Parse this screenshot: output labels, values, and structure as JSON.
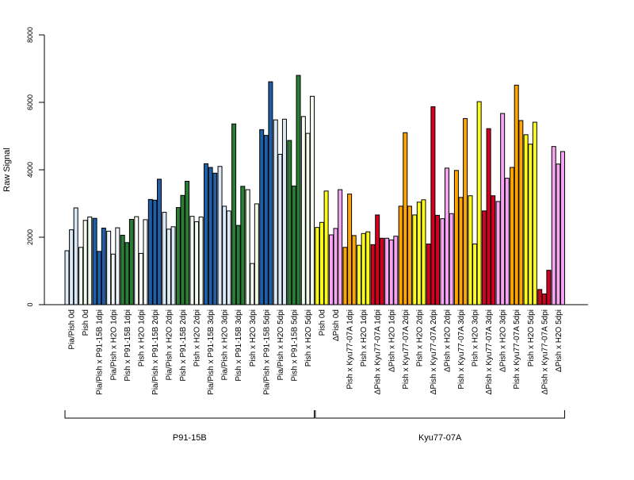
{
  "chart_data": {
    "type": "bar",
    "ylabel": "Raw Signal",
    "ylim": [
      0,
      8000
    ],
    "yticks": [
      0,
      2000,
      4000,
      6000,
      8000
    ],
    "grid": false,
    "legend": "none",
    "categories": [
      "Pia/Pish 0d",
      "Pish 0d",
      "Pia/Pish x P91-15B 1dpi",
      "Pia/Pish x H2O 1dpi",
      "Pish x P91-15B 1dpi",
      "Pish x H2O 1dpi",
      "Pia/Pish x P91-15B 2dpi",
      "Pia/Pish x H2O 2dpi",
      "Pish x P91-15B 2dpi",
      "Pish x H2O 2dpi",
      "Pia/Pish x P91-15B 3dpi",
      "Pia/Pish x H2O 3dpi",
      "Pish x P91-15B 3dpi",
      "Pish x H2O 3dpi",
      "Pia/Pish x P91-15B 5dpi",
      "Pia/Pish x H2O 5dpi",
      "Pish x P91-15B 5dpi",
      "Pish x H2O 5dpi",
      "Pish 0d",
      "ΔPish 0d",
      "Pish x Kyu77-07A 1dpi",
      "Pish x H2O 1dpi",
      "ΔPish x Kyu77-07A 1dpi",
      "ΔPish x H2O 1dpi",
      "Pish x Kyu77-07A 2dpi",
      "Pish x H2O 2dpi",
      "ΔPish x Kyu77-07A 2dpi",
      "ΔPish x H2O 2dpi",
      "Pish x Kyu77-07A 3dpi",
      "Pish x H2O 3dpi",
      "ΔPish x Kyu77-07A 3dpi",
      "ΔPish x H2O 3dpi",
      "Pish x Kyu77-07A 5dpi",
      "Pish x H2O 5dpi",
      "ΔPish x Kyu77-07A 5dpi",
      "ΔPish x H2O 5dpi"
    ],
    "replicates": [
      [
        1600,
        2220,
        2870
      ],
      [
        1700,
        2500,
        2600
      ],
      [
        2560,
        1580,
        2270
      ],
      [
        2180,
        1500,
        2280
      ],
      [
        2060,
        1840,
        2530
      ],
      [
        2610,
        1520,
        2520
      ],
      [
        3120,
        3100,
        3720
      ],
      [
        2740,
        2240,
        2310
      ],
      [
        2880,
        3240,
        3660
      ],
      [
        2620,
        2460,
        2600
      ],
      [
        4180,
        4070,
        3900
      ],
      [
        4100,
        2920,
        2780
      ],
      [
        5360,
        2350,
        3510
      ],
      [
        3410,
        1220,
        2990
      ],
      [
        5190,
        5020,
        6610
      ],
      [
        5480,
        4460,
        5500
      ],
      [
        4870,
        3520,
        6800
      ],
      [
        5580,
        5080,
        6180
      ],
      [
        2290,
        2440,
        3370
      ],
      [
        2070,
        2260,
        3410
      ],
      [
        1700,
        3280,
        2050
      ],
      [
        1760,
        2110,
        2160
      ],
      [
        1780,
        2660,
        1970
      ],
      [
        1970,
        1920,
        2030
      ],
      [
        2920,
        5100,
        2920
      ],
      [
        2660,
        3040,
        3110
      ],
      [
        1800,
        5870,
        2650
      ],
      [
        2550,
        4050,
        2700
      ],
      [
        3980,
        3180,
        5520
      ],
      [
        3230,
        1800,
        6020
      ],
      [
        2780,
        5220,
        3230
      ],
      [
        3060,
        5670,
        3750
      ],
      [
        4070,
        6510,
        5460
      ],
      [
        5040,
        4760,
        5410
      ],
      [
        450,
        320,
        1020
      ],
      [
        4690,
        4170,
        4540
      ]
    ],
    "colors": [
      "#dce9f7",
      "#f2fbee",
      "#1f5fa8",
      "#f0f5fb",
      "#2a7d34",
      "#fbfef9",
      "#1f5fa8",
      "#dce9f7",
      "#2a7d34",
      "#f2fbee",
      "#1f5fa8",
      "#dce9f7",
      "#2a7d34",
      "#f2fbee",
      "#1f5fa8",
      "#dce9f7",
      "#2a7d34",
      "#f2fbee",
      "#ffff1a",
      "#f7a5f2",
      "#ffa500",
      "#ffff1a",
      "#d5001f",
      "#f7a5f2",
      "#ffa500",
      "#ffff1a",
      "#d5001f",
      "#f7a5f2",
      "#ffa500",
      "#ffff1a",
      "#d5001f",
      "#f7a5f2",
      "#ffa500",
      "#ffff1a",
      "#d5001f",
      "#f7a5f2"
    ],
    "groups": [
      {
        "label": "P91-15B",
        "from": 0,
        "to": 17
      },
      {
        "label": "Kyu77-07A",
        "from": 18,
        "to": 35
      }
    ]
  }
}
